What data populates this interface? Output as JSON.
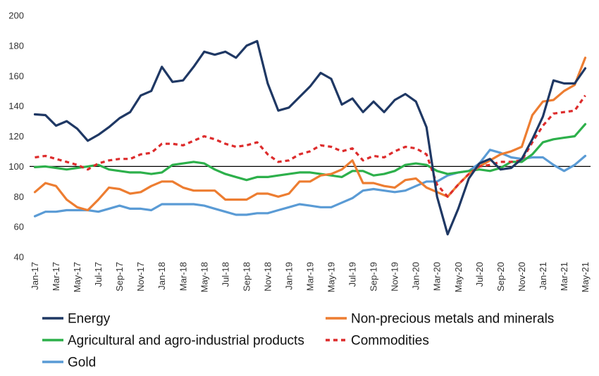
{
  "chart_data": {
    "type": "line",
    "title": "",
    "xlabel": "",
    "ylabel": "",
    "ylim": [
      40,
      200
    ],
    "yticks": [
      40,
      60,
      80,
      100,
      120,
      140,
      160,
      180,
      200
    ],
    "grid": false,
    "reference_line": 100,
    "legend_position": "bottom",
    "categories": [
      "Jan-17",
      "Feb-17",
      "Mar-17",
      "Apr-17",
      "May-17",
      "Jun-17",
      "Jul-17",
      "Aug-17",
      "Sep-17",
      "Oct-17",
      "Nov-17",
      "Dec-17",
      "Jan-18",
      "Feb-18",
      "Mar-18",
      "Apr-18",
      "May-18",
      "Jun-18",
      "Jul-18",
      "Aug-18",
      "Sep-18",
      "Oct-18",
      "Nov-18",
      "Dec-18",
      "Jan-19",
      "Feb-19",
      "Mar-19",
      "Apr-19",
      "May-19",
      "Jun-19",
      "Jul-19",
      "Aug-19",
      "Sep-19",
      "Oct-19",
      "Nov-19",
      "Dec-19",
      "Jan-20",
      "Feb-20",
      "Mar-20",
      "Apr-20",
      "May-20",
      "Jun-20",
      "Jul-20",
      "Aug-20",
      "Sep-20",
      "Oct-20",
      "Nov-20",
      "Dec-20",
      "Jan-21",
      "Feb-21",
      "Mar-21",
      "Apr-21",
      "May-21"
    ],
    "tick_labels": [
      "Jan-17",
      "Mar-17",
      "May-17",
      "Jul-17",
      "Sep-17",
      "Nov-17",
      "Jan-18",
      "Mar-18",
      "May-18",
      "Jul-18",
      "Sep-18",
      "Nov-18",
      "Jan-19",
      "Mar-19",
      "May-19",
      "Jul-19",
      "Sep-19",
      "Nov-19",
      "Jan-20",
      "Mar-20",
      "May-20",
      "Jul-20",
      "Sep-20",
      "Nov-20",
      "Jan-21",
      "Mar-21",
      "May-21"
    ],
    "series": [
      {
        "name": "Energy",
        "color": "#1f3864",
        "dash": "solid",
        "values": [
          134.5,
          134,
          127,
          130,
          125,
          117,
          121,
          126,
          132,
          136,
          147,
          150,
          166,
          156,
          157,
          166,
          176,
          174,
          176,
          172,
          180,
          183,
          155,
          137,
          139,
          146,
          153,
          162,
          158,
          141,
          145,
          136,
          143,
          136,
          144,
          148,
          143,
          126,
          80,
          55,
          72,
          92,
          102,
          105,
          98,
          99,
          105,
          118,
          133,
          157,
          155,
          155,
          165
        ]
      },
      {
        "name": "Non-precious metals and minerals",
        "color": "#ed7d31",
        "dash": "solid",
        "values": [
          83,
          89,
          87,
          78,
          73,
          71,
          78,
          86,
          85,
          82,
          83,
          87,
          90,
          90,
          86,
          84,
          84,
          84,
          78,
          78,
          78,
          82,
          82,
          80,
          82,
          90,
          90,
          94,
          95,
          98,
          104,
          89,
          89,
          87,
          86,
          91,
          92,
          86,
          83,
          80,
          88,
          95,
          100,
          104,
          108,
          110,
          113,
          134,
          143,
          144,
          150,
          154,
          172
        ]
      },
      {
        "name": "Agricultural and agro-industrial products",
        "color": "#2db04b",
        "dash": "solid",
        "values": [
          99.5,
          100,
          99,
          98,
          99,
          100,
          101,
          98,
          97,
          96,
          96,
          95,
          96,
          101,
          102,
          103,
          102,
          98,
          95,
          93,
          91,
          93,
          93,
          94,
          95,
          96,
          96,
          95,
          94,
          93,
          97,
          97,
          94,
          95,
          97,
          101,
          102,
          101,
          97,
          95,
          96,
          97,
          98,
          97,
          99,
          103,
          103,
          108,
          116,
          118,
          119,
          120,
          128
        ]
      },
      {
        "name": "Commodities",
        "color": "#dd2c2c",
        "dash": "dashed",
        "values": [
          106,
          107,
          105,
          103,
          101,
          98,
          102,
          104,
          105,
          105,
          108,
          109,
          115,
          115,
          114,
          117,
          120,
          118,
          115,
          113,
          114,
          116,
          108,
          103,
          104,
          108,
          110,
          114,
          113,
          110,
          112,
          104,
          107,
          106,
          110,
          113,
          112,
          108,
          88,
          80,
          88,
          95,
          100,
          101,
          103,
          103,
          104,
          116,
          127,
          135,
          136,
          137,
          147
        ]
      },
      {
        "name": "Gold",
        "color": "#5a9bd5",
        "dash": "solid",
        "values": [
          67,
          70,
          70,
          71,
          71,
          71,
          70,
          72,
          74,
          72,
          72,
          71,
          75,
          75,
          75,
          75,
          74,
          72,
          70,
          68,
          68,
          69,
          69,
          71,
          73,
          75,
          74,
          73,
          73,
          76,
          79,
          84,
          85,
          84,
          83,
          84,
          87,
          90,
          90,
          94,
          96,
          97,
          102,
          111,
          109,
          106,
          105,
          106,
          106,
          101,
          97,
          101,
          107
        ]
      }
    ]
  }
}
